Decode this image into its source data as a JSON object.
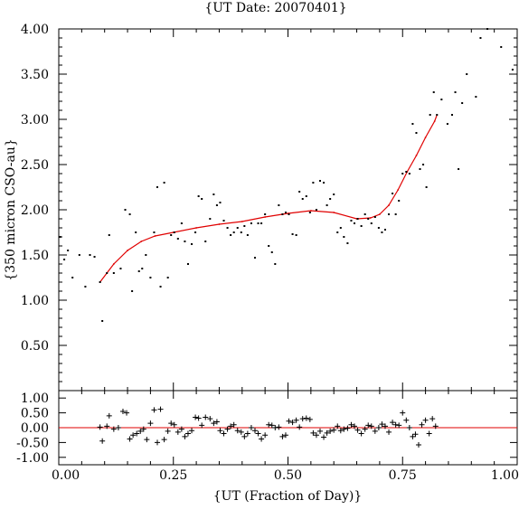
{
  "chart_data": [
    {
      "type": "scatter",
      "title": "{UT Date: 20070401}",
      "xlabel": "",
      "ylabel": "{350 micron CSO-au}",
      "xlim": [
        0,
        1
      ],
      "ylim": [
        0,
        4
      ],
      "y_ticks": [
        "0.50",
        "1.00",
        "1.50",
        "2.00",
        "2.50",
        "3.00",
        "3.50",
        "4.00"
      ],
      "y_tick_values": [
        0.5,
        1.0,
        1.5,
        2.0,
        2.5,
        3.0,
        3.5,
        4.0
      ],
      "grid": false,
      "series": [
        {
          "style": "dots",
          "color": "#000000",
          "x": [
            0.003,
            0.012,
            0.02,
            0.03,
            0.045,
            0.058,
            0.068,
            0.078,
            0.09,
            0.095,
            0.105,
            0.11,
            0.12,
            0.135,
            0.145,
            0.155,
            0.16,
            0.168,
            0.175,
            0.182,
            0.19,
            0.2,
            0.208,
            0.215,
            0.222,
            0.23,
            0.238,
            0.245,
            0.252,
            0.26,
            0.268,
            0.275,
            0.282,
            0.29,
            0.298,
            0.305,
            0.312,
            0.32,
            0.33,
            0.338,
            0.345,
            0.352,
            0.36,
            0.368,
            0.375,
            0.382,
            0.39,
            0.398,
            0.405,
            0.412,
            0.42,
            0.428,
            0.435,
            0.442,
            0.45,
            0.458,
            0.465,
            0.472,
            0.48,
            0.488,
            0.495,
            0.502,
            0.51,
            0.518,
            0.525,
            0.532,
            0.54,
            0.548,
            0.555,
            0.562,
            0.57,
            0.578,
            0.585,
            0.592,
            0.6,
            0.608,
            0.615,
            0.622,
            0.63,
            0.638,
            0.645,
            0.652,
            0.66,
            0.668,
            0.675,
            0.682,
            0.69,
            0.698,
            0.705,
            0.712,
            0.72,
            0.728,
            0.735,
            0.742,
            0.75,
            0.758,
            0.765,
            0.772,
            0.78,
            0.788,
            0.795,
            0.802,
            0.81,
            0.818,
            0.825,
            0.835,
            0.848,
            0.858,
            0.865,
            0.872,
            0.88,
            0.89,
            0.91,
            0.92,
            0.935,
            0.965,
            0.99
          ],
          "y": [
            1.7,
            1.45,
            1.55,
            1.25,
            1.5,
            1.15,
            1.5,
            1.48,
            1.2,
            0.77,
            1.3,
            1.72,
            1.3,
            1.35,
            2.0,
            1.95,
            1.1,
            1.75,
            1.32,
            1.35,
            1.5,
            1.25,
            1.75,
            2.25,
            1.15,
            2.3,
            1.25,
            1.72,
            1.75,
            1.68,
            1.85,
            1.65,
            1.4,
            1.62,
            1.75,
            2.15,
            2.12,
            1.65,
            1.9,
            2.17,
            2.05,
            2.08,
            1.88,
            1.8,
            1.72,
            1.75,
            1.8,
            1.75,
            1.82,
            1.72,
            1.85,
            1.47,
            1.85,
            1.85,
            1.95,
            1.6,
            1.53,
            1.4,
            2.05,
            1.95,
            1.97,
            1.95,
            1.73,
            1.72,
            2.2,
            2.12,
            2.15,
            1.97,
            2.3,
            2.0,
            2.32,
            2.3,
            2.05,
            2.12,
            2.17,
            1.75,
            1.8,
            1.7,
            1.63,
            1.88,
            1.85,
            1.9,
            1.82,
            1.95,
            1.9,
            1.85,
            1.92,
            1.8,
            1.75,
            1.78,
            1.95,
            2.18,
            1.95,
            2.1,
            2.4,
            2.42,
            2.4,
            2.95,
            2.85,
            2.45,
            2.5,
            2.25,
            3.05,
            3.3,
            3.05,
            3.22,
            2.95,
            3.05,
            3.3,
            2.45,
            3.18,
            3.5,
            3.25,
            3.9,
            4.0,
            3.8,
            3.55
          ]
        },
        {
          "style": "fit-line",
          "color": "#e00000",
          "x": [
            0.09,
            0.12,
            0.15,
            0.18,
            0.21,
            0.25,
            0.3,
            0.35,
            0.4,
            0.45,
            0.5,
            0.55,
            0.6,
            0.65,
            0.68,
            0.7,
            0.72,
            0.74,
            0.76,
            0.78,
            0.8,
            0.82,
            0.825
          ],
          "y": [
            1.2,
            1.4,
            1.55,
            1.65,
            1.71,
            1.75,
            1.8,
            1.84,
            1.87,
            1.92,
            1.96,
            1.99,
            1.97,
            1.9,
            1.91,
            1.95,
            2.05,
            2.22,
            2.42,
            2.6,
            2.8,
            2.98,
            3.05
          ]
        }
      ]
    },
    {
      "type": "scatter",
      "title": "",
      "xlabel": "{UT (Fraction of Day)}",
      "ylabel": "",
      "xlim": [
        0,
        1
      ],
      "ylim": [
        -1.25,
        1.25
      ],
      "x_ticks": [
        "0.00",
        "0.25",
        "0.50",
        "0.75",
        "1.00"
      ],
      "x_tick_values": [
        0,
        0.25,
        0.5,
        0.75,
        1.0
      ],
      "y_ticks": [
        "-1.00",
        "-0.50",
        "0.00",
        "0.50",
        "1.00"
      ],
      "y_tick_values": [
        -1.0,
        -0.5,
        0.0,
        0.5,
        1.0
      ],
      "grid": false,
      "series": [
        {
          "style": "plus",
          "color": "#000000",
          "x": [
            0.09,
            0.095,
            0.105,
            0.11,
            0.12,
            0.13,
            0.14,
            0.148,
            0.155,
            0.162,
            0.17,
            0.178,
            0.185,
            0.192,
            0.2,
            0.208,
            0.215,
            0.222,
            0.23,
            0.238,
            0.245,
            0.252,
            0.26,
            0.268,
            0.275,
            0.282,
            0.29,
            0.298,
            0.305,
            0.312,
            0.32,
            0.33,
            0.338,
            0.345,
            0.352,
            0.36,
            0.368,
            0.375,
            0.382,
            0.39,
            0.398,
            0.405,
            0.412,
            0.42,
            0.428,
            0.435,
            0.442,
            0.45,
            0.458,
            0.465,
            0.472,
            0.48,
            0.488,
            0.495,
            0.502,
            0.51,
            0.518,
            0.525,
            0.532,
            0.54,
            0.548,
            0.555,
            0.562,
            0.57,
            0.578,
            0.585,
            0.592,
            0.6,
            0.608,
            0.615,
            0.622,
            0.63,
            0.638,
            0.645,
            0.652,
            0.66,
            0.668,
            0.675,
            0.682,
            0.69,
            0.698,
            0.705,
            0.712,
            0.72,
            0.728,
            0.735,
            0.742,
            0.75,
            0.758,
            0.765,
            0.772,
            0.778,
            0.785,
            0.792,
            0.8,
            0.808,
            0.815,
            0.822
          ],
          "y": [
            0.02,
            -0.45,
            0.05,
            0.4,
            -0.05,
            0.0,
            0.55,
            0.5,
            -0.38,
            -0.25,
            -0.2,
            -0.12,
            -0.05,
            -0.4,
            0.15,
            0.6,
            -0.5,
            0.62,
            -0.4,
            -0.12,
            0.15,
            0.1,
            -0.15,
            -0.05,
            -0.3,
            -0.2,
            -0.1,
            0.35,
            0.32,
            0.08,
            0.35,
            0.3,
            0.15,
            0.2,
            -0.1,
            -0.2,
            -0.05,
            0.05,
            0.1,
            -0.1,
            -0.15,
            -0.3,
            -0.2,
            0.0,
            -0.1,
            -0.2,
            -0.38,
            -0.25,
            0.1,
            0.08,
            0.0,
            0.02,
            -0.3,
            -0.25,
            0.22,
            0.18,
            0.25,
            0.02,
            0.3,
            0.32,
            0.28,
            -0.18,
            -0.25,
            -0.12,
            -0.32,
            -0.18,
            -0.12,
            -0.08,
            0.05,
            -0.1,
            -0.05,
            -0.02,
            0.1,
            0.05,
            -0.08,
            -0.2,
            -0.05,
            0.08,
            0.05,
            -0.12,
            0.0,
            0.12,
            0.05,
            -0.15,
            0.18,
            0.1,
            0.08,
            0.5,
            0.25,
            0.0,
            -0.3,
            -0.22,
            -0.58,
            0.1,
            0.25,
            -0.2,
            0.3,
            0.05
          ]
        },
        {
          "style": "zero-line",
          "color": "#e00000",
          "x": [
            0,
            1
          ],
          "y": [
            0,
            0
          ]
        }
      ]
    }
  ]
}
